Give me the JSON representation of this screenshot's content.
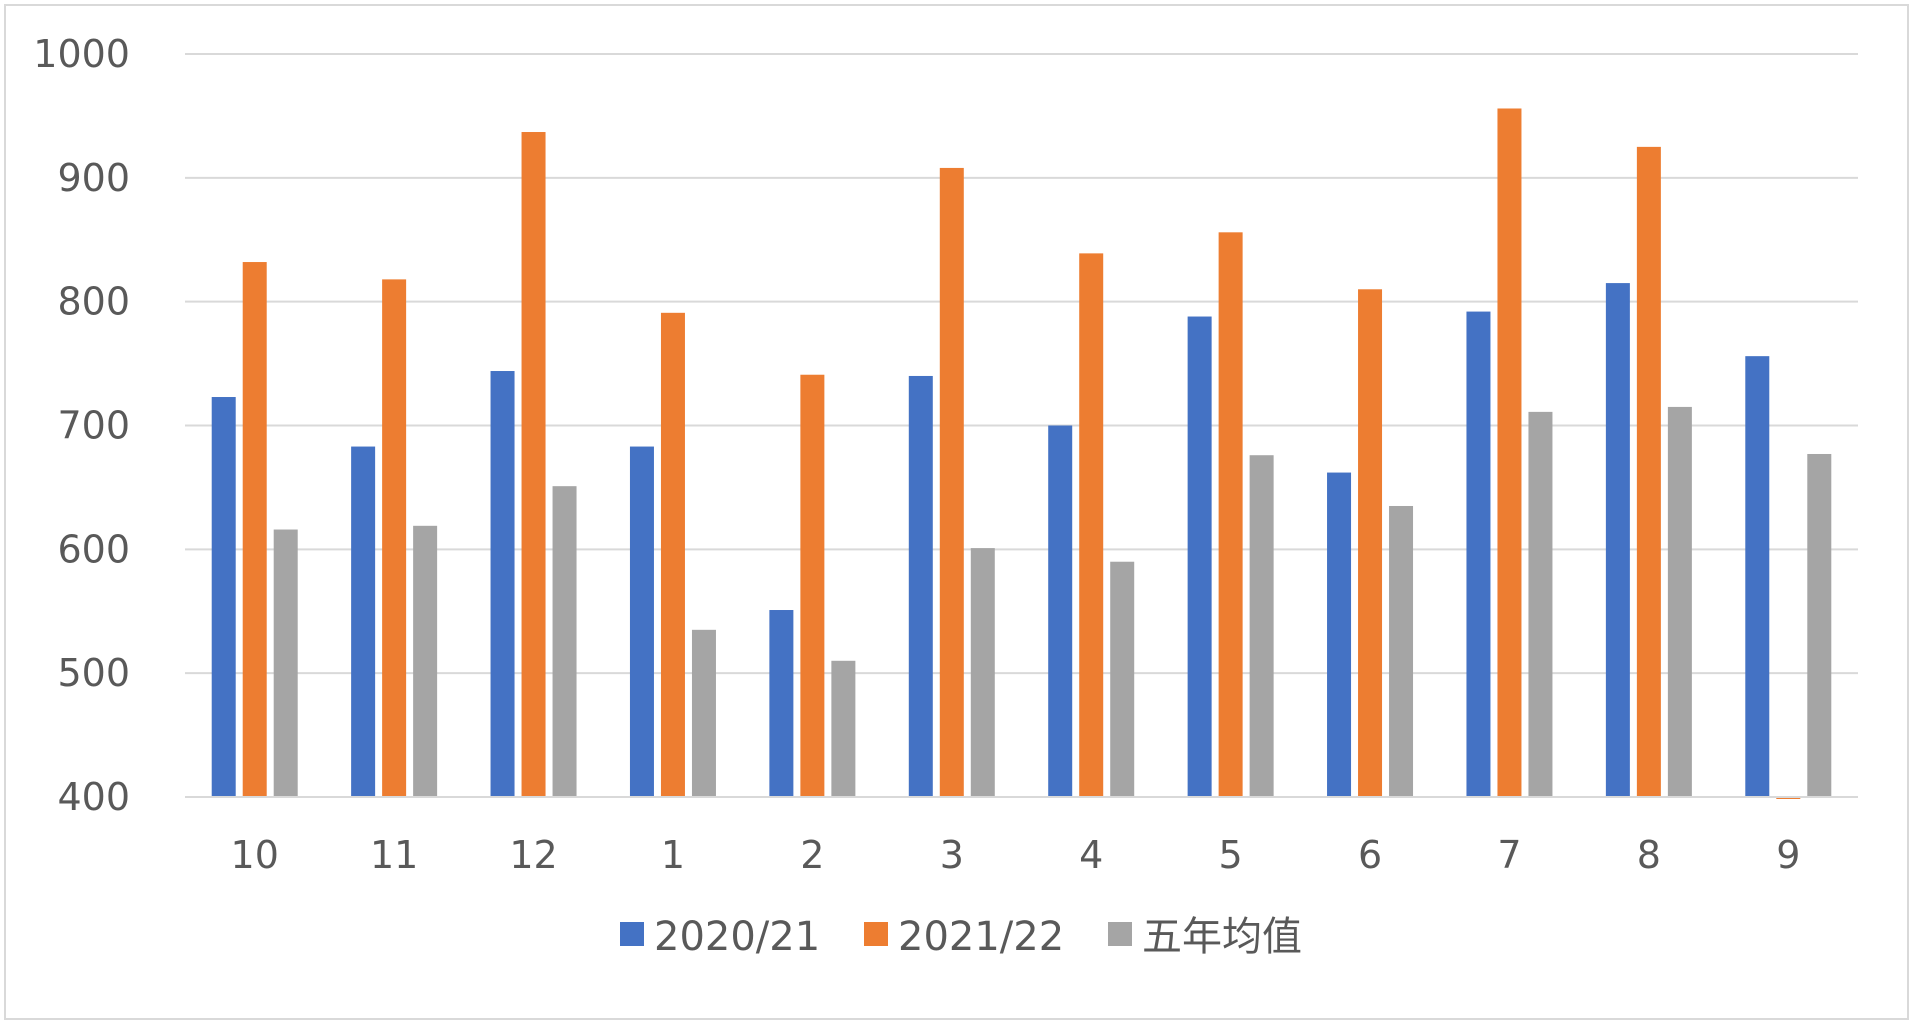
{
  "chart_data": {
    "type": "bar",
    "title": "",
    "xlabel": "",
    "ylabel": "",
    "categories": [
      "10",
      "11",
      "12",
      "1",
      "2",
      "3",
      "4",
      "5",
      "6",
      "7",
      "8",
      "9"
    ],
    "series": [
      {
        "name": "2020/21",
        "color": "#4472C4",
        "values": [
          723,
          683,
          744,
          683,
          551,
          740,
          700,
          788,
          662,
          792,
          815,
          756
        ]
      },
      {
        "name": "2021/22",
        "color": "#ED7D31",
        "values": [
          832,
          818,
          937,
          791,
          741,
          908,
          839,
          856,
          810,
          956,
          925,
          398
        ]
      },
      {
        "name": "五年均值",
        "color": "#A5A5A5",
        "values": [
          616,
          619,
          651,
          535,
          510,
          601,
          590,
          676,
          635,
          711,
          715,
          677
        ]
      }
    ],
    "ylim": [
      400,
      1000
    ],
    "yticks": [
      "400",
      "500",
      "600",
      "700",
      "800",
      "900",
      "1000"
    ],
    "grid": true,
    "legend_position": "bottom",
    "gridline_color": "#D9D9D9",
    "axis_label_color": "#595959"
  }
}
